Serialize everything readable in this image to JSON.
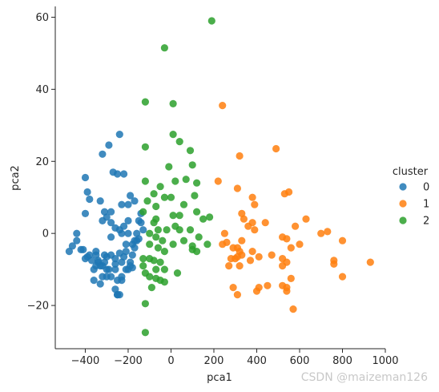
{
  "chart_data": {
    "type": "scatter",
    "xlabel": "pca1",
    "ylabel": "pca2",
    "xlim": [
      -540,
      1000
    ],
    "ylim": [
      -32,
      63
    ],
    "xticks": [
      -400,
      -200,
      0,
      200,
      400,
      600,
      800,
      1000
    ],
    "yticks": [
      -20,
      0,
      20,
      40,
      60
    ],
    "grid": false,
    "legend": {
      "title": "cluster",
      "placement": "right"
    },
    "series": [
      {
        "name": "0",
        "color": "#1f77b4",
        "points": [
          [
            -400,
            15.5
          ],
          [
            -390,
            11.5
          ],
          [
            -380,
            9.5
          ],
          [
            -400,
            5.5
          ],
          [
            -440,
            0
          ],
          [
            -440,
            -2
          ],
          [
            -460,
            -3.5
          ],
          [
            -475,
            -5
          ],
          [
            -420,
            -4.5
          ],
          [
            -410,
            -4.5
          ],
          [
            -390,
            -6.5
          ],
          [
            -370,
            -7.5
          ],
          [
            -350,
            -6
          ],
          [
            -340,
            -7.5
          ],
          [
            -330,
            -9
          ],
          [
            -310,
            -8
          ],
          [
            -300,
            -6.5
          ],
          [
            -280,
            -6
          ],
          [
            -360,
            -10
          ],
          [
            -360,
            -13
          ],
          [
            -330,
            -14
          ],
          [
            -300,
            -12
          ],
          [
            -280,
            -12
          ],
          [
            -260,
            -15.5
          ],
          [
            -250,
            -17
          ],
          [
            -240,
            -17
          ],
          [
            -250,
            -13
          ],
          [
            -230,
            -12
          ],
          [
            -200,
            -10
          ],
          [
            -180,
            -9.5
          ],
          [
            -190,
            -8
          ],
          [
            -220,
            -6.5
          ],
          [
            -240,
            -5.5
          ],
          [
            -260,
            -8.5
          ],
          [
            -210,
            -5
          ],
          [
            -180,
            -3
          ],
          [
            -170,
            -2
          ],
          [
            -160,
            0
          ],
          [
            -150,
            -1.5
          ],
          [
            -130,
            1
          ],
          [
            -200,
            0
          ],
          [
            -230,
            0
          ],
          [
            -240,
            1
          ],
          [
            -220,
            2
          ],
          [
            -200,
            3.5
          ],
          [
            -260,
            1.5
          ],
          [
            -280,
            3
          ],
          [
            -300,
            4.5
          ],
          [
            -310,
            6
          ],
          [
            -320,
            3.5
          ],
          [
            -280,
            6
          ],
          [
            -230,
            8
          ],
          [
            -190,
            10.5
          ],
          [
            -170,
            9
          ],
          [
            -140,
            5.5
          ],
          [
            -150,
            3.5
          ],
          [
            -320,
            22
          ],
          [
            -290,
            24.5
          ],
          [
            -240,
            27.5
          ],
          [
            -270,
            17
          ],
          [
            -250,
            16.5
          ],
          [
            -220,
            16.5
          ],
          [
            -330,
            9
          ],
          [
            -350,
            -5
          ],
          [
            -340,
            -8
          ],
          [
            -320,
            -9
          ],
          [
            -300,
            -10
          ],
          [
            -320,
            -12
          ],
          [
            -290,
            -10
          ],
          [
            -310,
            -6
          ],
          [
            -260,
            -7
          ],
          [
            -230,
            -8
          ],
          [
            -210,
            -10
          ],
          [
            -190,
            -9
          ],
          [
            -180,
            -6
          ],
          [
            -170,
            -4
          ],
          [
            -160,
            -2
          ],
          [
            -260,
            -10
          ],
          [
            -230,
            -13
          ],
          [
            -250,
            -17
          ],
          [
            -400,
            -7
          ],
          [
            -380,
            -6
          ],
          [
            -350,
            -9
          ],
          [
            -280,
            -1
          ],
          [
            -140,
            3
          ],
          [
            -210,
            -3
          ],
          [
            -200,
            8
          ]
        ]
      },
      {
        "name": "1",
        "color": "#ff7f0e",
        "points": [
          [
            240,
            35.5
          ],
          [
            320,
            21.5
          ],
          [
            490,
            23.5
          ],
          [
            220,
            14.5
          ],
          [
            310,
            12.5
          ],
          [
            380,
            10
          ],
          [
            390,
            8
          ],
          [
            330,
            5.5
          ],
          [
            340,
            4
          ],
          [
            380,
            3
          ],
          [
            440,
            3
          ],
          [
            530,
            11
          ],
          [
            550,
            11.5
          ],
          [
            580,
            2
          ],
          [
            520,
            -1
          ],
          [
            540,
            -1.5
          ],
          [
            630,
            4
          ],
          [
            700,
            0
          ],
          [
            730,
            0.5
          ],
          [
            800,
            -2
          ],
          [
            250,
            0
          ],
          [
            260,
            -2.5
          ],
          [
            240,
            -3
          ],
          [
            290,
            -4
          ],
          [
            310,
            -4
          ],
          [
            320,
            -5
          ],
          [
            310,
            -6.5
          ],
          [
            330,
            -6
          ],
          [
            300,
            -7
          ],
          [
            280,
            -7
          ],
          [
            270,
            -9
          ],
          [
            320,
            -9
          ],
          [
            370,
            -7.5
          ],
          [
            410,
            -6.5
          ],
          [
            470,
            -6
          ],
          [
            520,
            -7
          ],
          [
            540,
            -8
          ],
          [
            520,
            -9
          ],
          [
            560,
            -4
          ],
          [
            390,
            1
          ],
          [
            410,
            -15
          ],
          [
            400,
            -16
          ],
          [
            450,
            -14.5
          ],
          [
            520,
            -14.5
          ],
          [
            540,
            -15
          ],
          [
            540,
            -16
          ],
          [
            560,
            -12.5
          ],
          [
            570,
            -21
          ],
          [
            290,
            -15
          ],
          [
            310,
            -17
          ],
          [
            760,
            -7.5
          ],
          [
            760,
            -8.5
          ],
          [
            800,
            -12
          ],
          [
            930,
            -8
          ],
          [
            380,
            -5
          ],
          [
            330,
            -2
          ],
          [
            360,
            2
          ],
          [
            600,
            -3
          ]
        ]
      },
      {
        "name": "2",
        "color": "#2ca02c",
        "points": [
          [
            190,
            59
          ],
          [
            -30,
            51.5
          ],
          [
            -120,
            36.5
          ],
          [
            10,
            36
          ],
          [
            -120,
            24
          ],
          [
            10,
            27.5
          ],
          [
            40,
            25.5
          ],
          [
            90,
            23
          ],
          [
            -120,
            14.5
          ],
          [
            -10,
            18.5
          ],
          [
            100,
            19
          ],
          [
            -50,
            13
          ],
          [
            20,
            14.5
          ],
          [
            70,
            15
          ],
          [
            120,
            14
          ],
          [
            -80,
            11
          ],
          [
            -110,
            9
          ],
          [
            -70,
            7.5
          ],
          [
            -30,
            10
          ],
          [
            0,
            10
          ],
          [
            110,
            10.5
          ],
          [
            -130,
            6
          ],
          [
            -70,
            4
          ],
          [
            -60,
            1
          ],
          [
            10,
            5
          ],
          [
            40,
            5
          ],
          [
            120,
            6
          ],
          [
            150,
            4
          ],
          [
            180,
            4.5
          ],
          [
            -100,
            0
          ],
          [
            -70,
            -1
          ],
          [
            -40,
            -2
          ],
          [
            20,
            2
          ],
          [
            40,
            1
          ],
          [
            90,
            1
          ],
          [
            130,
            -1
          ],
          [
            -100,
            -3
          ],
          [
            -60,
            -4
          ],
          [
            -30,
            -5
          ],
          [
            10,
            -3
          ],
          [
            60,
            -2
          ],
          [
            100,
            -3.5
          ],
          [
            170,
            -3
          ],
          [
            -130,
            -7
          ],
          [
            -80,
            -7.5
          ],
          [
            -50,
            -8
          ],
          [
            -30,
            -10
          ],
          [
            -120,
            -11
          ],
          [
            -100,
            -12
          ],
          [
            -70,
            -12.5
          ],
          [
            -50,
            -13
          ],
          [
            -90,
            -15
          ],
          [
            -30,
            -13.5
          ],
          [
            -120,
            -19.5
          ],
          [
            -120,
            -27.5
          ],
          [
            -100,
            -7
          ],
          [
            -70,
            -10
          ],
          [
            30,
            -11
          ],
          [
            120,
            -5
          ],
          [
            100,
            -4.5
          ],
          [
            -20,
            1
          ],
          [
            -80,
            3
          ],
          [
            60,
            8
          ],
          [
            -130,
            -9
          ]
        ]
      }
    ]
  },
  "watermark": "CSDN @maizeman126"
}
